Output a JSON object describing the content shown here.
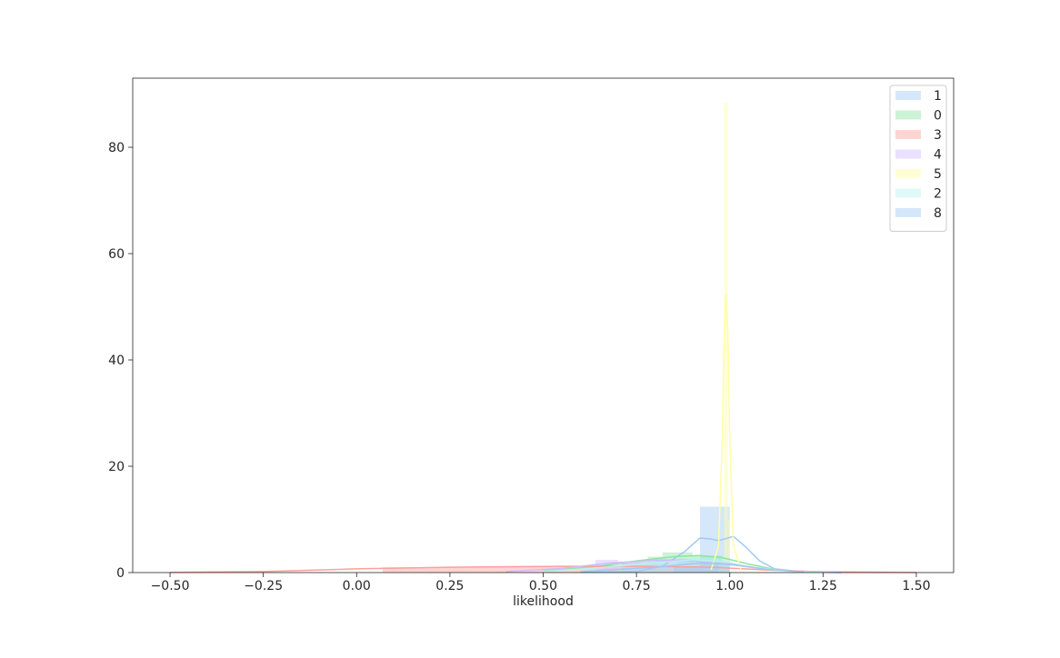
{
  "chart_data": {
    "type": "histogram",
    "title": "",
    "xlabel": "likelihood",
    "ylabel": "",
    "xlim": [
      -0.6,
      1.6
    ],
    "ylim": [
      0,
      93
    ],
    "xticks": [
      -0.5,
      -0.25,
      0.0,
      0.25,
      0.5,
      0.75,
      1.0,
      1.25,
      1.5
    ],
    "xtick_labels": [
      "−0.50",
      "−0.25",
      "0.00",
      "0.25",
      "0.50",
      "0.75",
      "1.00",
      "1.25",
      "1.50"
    ],
    "yticks": [
      0,
      20,
      40,
      60,
      80
    ],
    "ytick_labels": [
      "0",
      "20",
      "40",
      "60",
      "80"
    ],
    "grid": false,
    "legend_position": "top-right",
    "series": [
      {
        "name": "1",
        "color": "#a1c9f4",
        "bins": [
          [
            0.78,
            0.86,
            0.8
          ],
          [
            0.86,
            0.92,
            2.5
          ],
          [
            0.92,
            1.0,
            12.4
          ]
        ],
        "kde": [
          [
            0.6,
            0.05
          ],
          [
            0.75,
            0.2
          ],
          [
            0.82,
            1.2
          ],
          [
            0.88,
            4.0
          ],
          [
            0.92,
            6.5
          ],
          [
            0.95,
            6.3
          ],
          [
            0.97,
            6.0
          ],
          [
            0.99,
            6.4
          ],
          [
            1.01,
            6.8
          ],
          [
            1.04,
            5.0
          ],
          [
            1.08,
            2.2
          ],
          [
            1.12,
            0.7
          ],
          [
            1.2,
            0.1
          ],
          [
            1.3,
            0.0
          ]
        ]
      },
      {
        "name": "0",
        "color": "#8de5a1",
        "bins": [
          [
            0.71,
            0.78,
            2.0
          ],
          [
            0.78,
            0.82,
            3.0
          ],
          [
            0.82,
            0.9,
            3.8
          ],
          [
            0.9,
            0.98,
            3.2
          ]
        ],
        "kde": [
          [
            0.5,
            0.3
          ],
          [
            0.65,
            1.2
          ],
          [
            0.75,
            2.2
          ],
          [
            0.85,
            3.0
          ],
          [
            0.92,
            3.2
          ],
          [
            0.98,
            2.8
          ],
          [
            1.05,
            1.6
          ],
          [
            1.12,
            0.6
          ],
          [
            1.2,
            0.15
          ],
          [
            1.3,
            0.0
          ]
        ]
      },
      {
        "name": "3",
        "color": "#ff9f9b",
        "bins": [
          [
            0.07,
            0.3,
            1.0
          ],
          [
            0.3,
            0.55,
            1.1
          ],
          [
            0.55,
            0.8,
            1.3
          ],
          [
            0.8,
            1.0,
            1.1
          ]
        ],
        "kde": [
          [
            -0.5,
            0.05
          ],
          [
            -0.25,
            0.2
          ],
          [
            0.0,
            0.7
          ],
          [
            0.25,
            1.0
          ],
          [
            0.5,
            1.15
          ],
          [
            0.75,
            1.2
          ],
          [
            0.95,
            1.0
          ],
          [
            1.1,
            0.5
          ],
          [
            1.25,
            0.15
          ],
          [
            1.5,
            0.03
          ]
        ]
      },
      {
        "name": "4",
        "color": "#d0bbff",
        "bins": [
          [
            0.64,
            0.7,
            2.4
          ],
          [
            0.7,
            0.8,
            2.0
          ],
          [
            0.8,
            0.9,
            2.6
          ],
          [
            0.9,
            0.98,
            1.8
          ]
        ],
        "kde": [
          [
            0.4,
            0.2
          ],
          [
            0.55,
            0.8
          ],
          [
            0.68,
            1.8
          ],
          [
            0.8,
            2.3
          ],
          [
            0.9,
            2.2
          ],
          [
            1.0,
            1.5
          ],
          [
            1.08,
            0.8
          ],
          [
            1.18,
            0.2
          ],
          [
            1.3,
            0.02
          ]
        ]
      },
      {
        "name": "5",
        "color": "#fffea3",
        "bins": [
          [
            0.97,
            0.985,
            2.0
          ],
          [
            0.985,
            0.995,
            88.5
          ],
          [
            0.995,
            1.0,
            10.0
          ]
        ],
        "kde": [
          [
            0.95,
            0.5
          ],
          [
            0.97,
            5.0
          ],
          [
            0.98,
            25.0
          ],
          [
            0.985,
            45.0
          ],
          [
            0.99,
            52.3
          ],
          [
            0.995,
            45.0
          ],
          [
            1.0,
            25.0
          ],
          [
            1.01,
            5.0
          ],
          [
            1.03,
            0.5
          ]
        ]
      },
      {
        "name": "2",
        "color": "#b9f2f0",
        "bins": [
          [
            0.7,
            0.8,
            1.5
          ],
          [
            0.8,
            0.9,
            2.3
          ],
          [
            0.9,
            1.0,
            2.8
          ]
        ],
        "kde": [
          [
            0.5,
            0.2
          ],
          [
            0.65,
            0.9
          ],
          [
            0.78,
            1.7
          ],
          [
            0.9,
            2.4
          ],
          [
            0.98,
            2.1
          ],
          [
            1.06,
            1.0
          ],
          [
            1.15,
            0.3
          ],
          [
            1.25,
            0.02
          ]
        ]
      },
      {
        "name": "8",
        "color": "#a1c9f4",
        "bins": [
          [
            0.85,
            0.92,
            1.2
          ],
          [
            0.92,
            1.0,
            2.0
          ]
        ],
        "kde": [
          [
            0.6,
            0.2
          ],
          [
            0.8,
            1.0
          ],
          [
            0.92,
            1.8
          ],
          [
            1.0,
            1.6
          ],
          [
            1.1,
            0.6
          ],
          [
            1.2,
            0.1
          ]
        ]
      }
    ]
  }
}
